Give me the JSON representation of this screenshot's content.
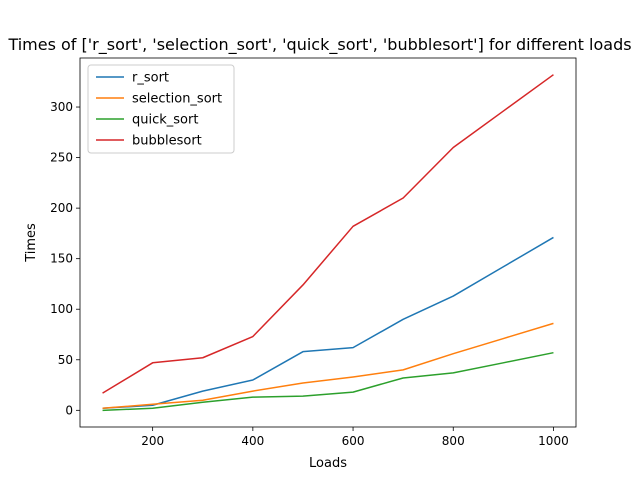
{
  "chart_data": {
    "type": "line",
    "title": "Times of ['r_sort', 'selection_sort', 'quick_sort', 'bubblesort'] for different loads",
    "xlabel": "Loads",
    "ylabel": "Times",
    "xlim": [
      55,
      1045
    ],
    "ylim": [
      -16.5,
      348.5
    ],
    "xticks": [
      200,
      400,
      600,
      800,
      1000
    ],
    "yticks": [
      0,
      50,
      100,
      150,
      200,
      250,
      300
    ],
    "grid": false,
    "legend_position": "top-left",
    "x": [
      100,
      200,
      300,
      400,
      500,
      600,
      700,
      800,
      900,
      1000
    ],
    "series": [
      {
        "name": "r_sort",
        "color": "#1f77b4",
        "values": [
          2,
          5,
          19,
          30,
          58,
          62,
          90,
          113,
          142,
          171
        ]
      },
      {
        "name": "selection_sort",
        "color": "#ff7f0e",
        "values": [
          2,
          6,
          10,
          19,
          27,
          33,
          40,
          56,
          71,
          86
        ]
      },
      {
        "name": "quick_sort",
        "color": "#2ca02c",
        "values": [
          0,
          2,
          8,
          13,
          14,
          18,
          32,
          37,
          47,
          57
        ]
      },
      {
        "name": "bubblesort",
        "color": "#d62728",
        "values": [
          17,
          47,
          52,
          73,
          124,
          182,
          210,
          260,
          296,
          332
        ]
      }
    ]
  }
}
